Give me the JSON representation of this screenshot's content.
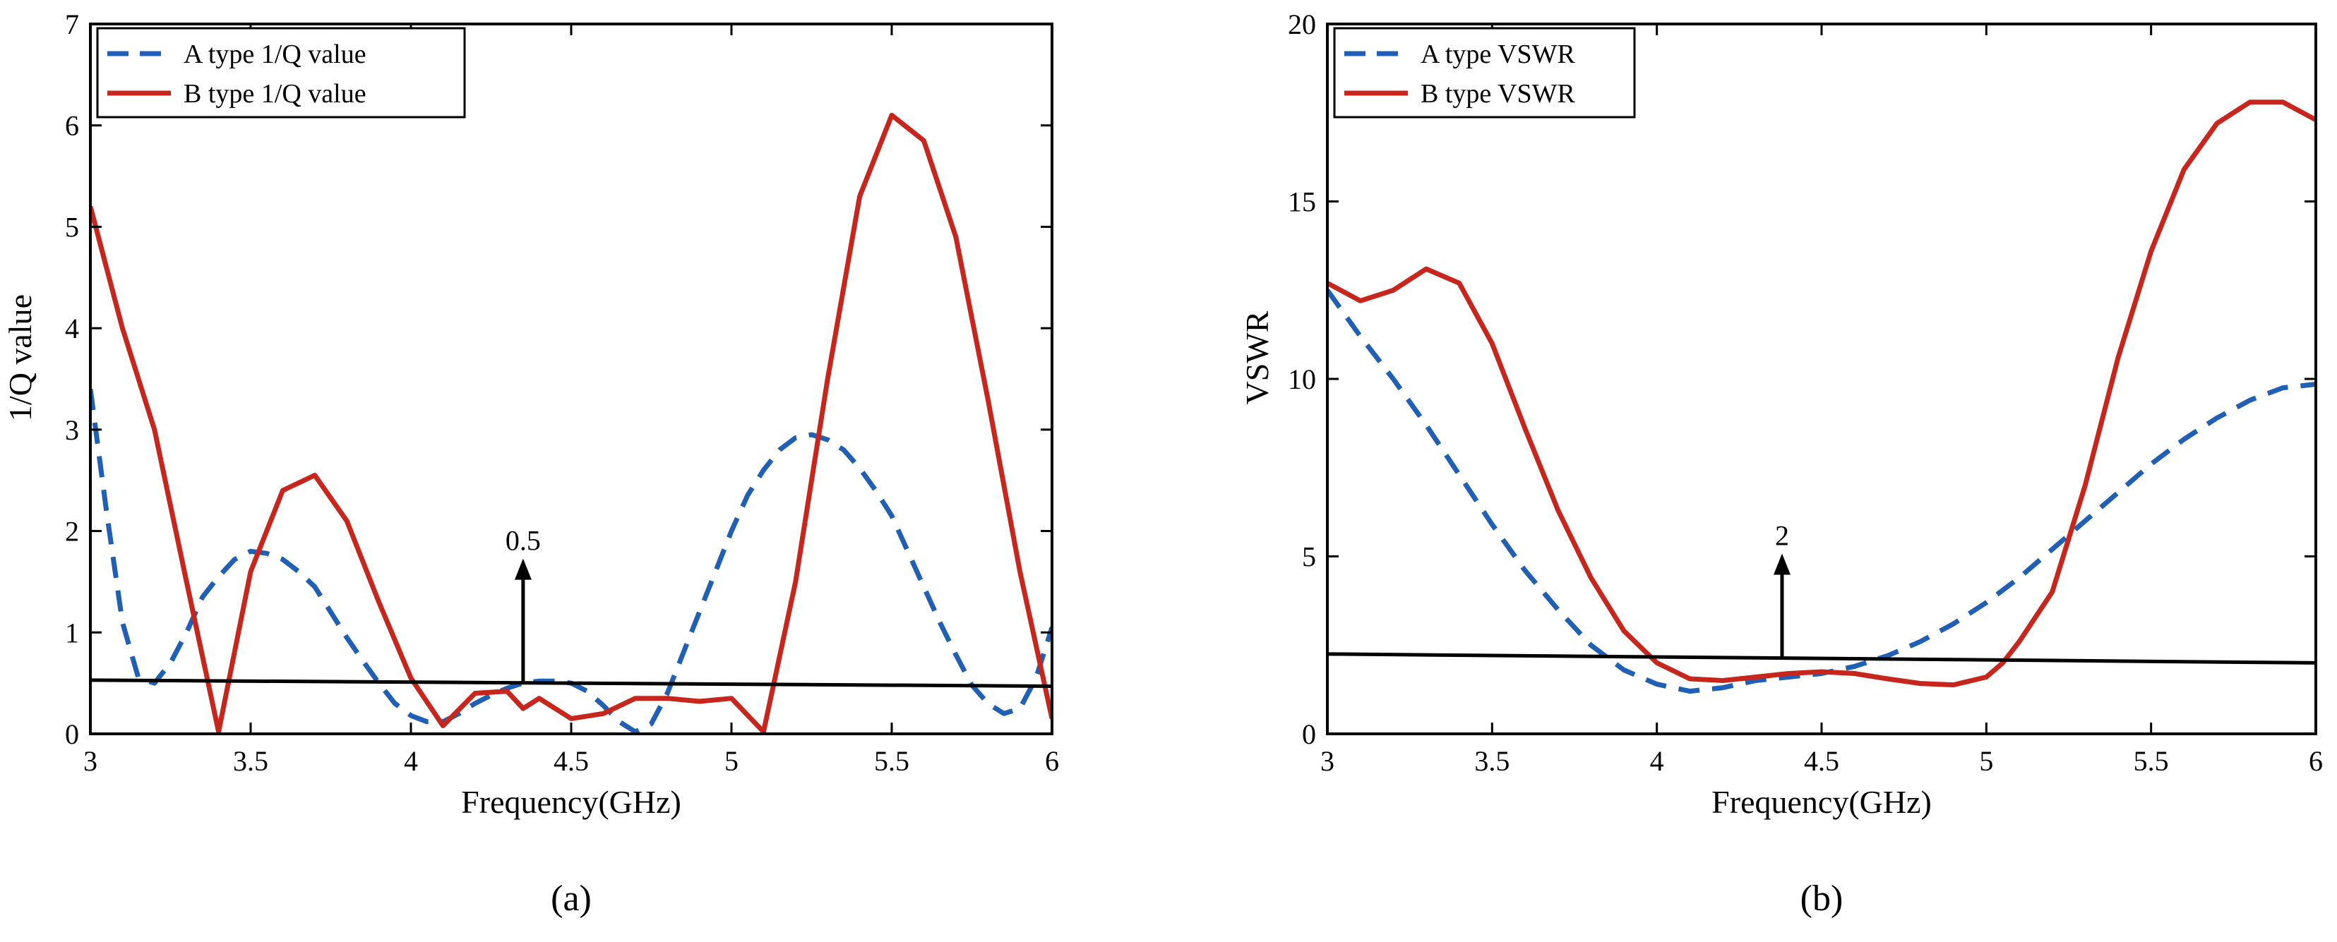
{
  "colors": {
    "series_a": "#1f5fb5",
    "series_b": "#c8261c",
    "threshold": "#000000"
  },
  "chart_data": [
    {
      "type": "line",
      "caption": "(a)",
      "title": "",
      "xlabel": "Frequency(GHz)",
      "ylabel": "1/Q value",
      "xlim": [
        3,
        6
      ],
      "ylim": [
        0,
        7
      ],
      "xticks": [
        3,
        3.5,
        4,
        4.5,
        5,
        5.5,
        6
      ],
      "xtick_labels": [
        "3",
        "3.5",
        "4",
        "4.5",
        "5",
        "5.5",
        "6"
      ],
      "yticks": [
        0,
        1,
        2,
        3,
        4,
        5,
        6,
        7
      ],
      "ytick_labels": [
        "0",
        "1",
        "2",
        "3",
        "4",
        "5",
        "6",
        "7"
      ],
      "legend_position": "top-left",
      "series": [
        {
          "name": "A type 1/Q value",
          "style": "dashed",
          "color_key": "series_a",
          "x": [
            3.0,
            3.05,
            3.1,
            3.15,
            3.2,
            3.25,
            3.3,
            3.35,
            3.4,
            3.45,
            3.5,
            3.55,
            3.6,
            3.65,
            3.7,
            3.75,
            3.8,
            3.85,
            3.9,
            3.95,
            4.0,
            4.05,
            4.1,
            4.15,
            4.2,
            4.25,
            4.3,
            4.35,
            4.4,
            4.45,
            4.5,
            4.55,
            4.6,
            4.65,
            4.7,
            4.75,
            4.8,
            4.85,
            4.9,
            4.95,
            5.0,
            5.05,
            5.1,
            5.15,
            5.2,
            5.25,
            5.3,
            5.35,
            5.4,
            5.45,
            5.5,
            5.55,
            5.6,
            5.65,
            5.7,
            5.75,
            5.8,
            5.85,
            5.9,
            5.95,
            6.0
          ],
          "values": [
            3.4,
            2.2,
            1.1,
            0.55,
            0.5,
            0.7,
            1.0,
            1.35,
            1.55,
            1.72,
            1.8,
            1.78,
            1.72,
            1.6,
            1.45,
            1.2,
            0.95,
            0.72,
            0.5,
            0.3,
            0.18,
            0.12,
            0.12,
            0.2,
            0.3,
            0.38,
            0.45,
            0.5,
            0.52,
            0.52,
            0.5,
            0.42,
            0.28,
            0.12,
            0.02,
            0.1,
            0.4,
            0.8,
            1.2,
            1.6,
            2.0,
            2.35,
            2.6,
            2.8,
            2.92,
            2.95,
            2.9,
            2.8,
            2.62,
            2.4,
            2.15,
            1.8,
            1.45,
            1.1,
            0.78,
            0.48,
            0.3,
            0.2,
            0.25,
            0.55,
            1.05
          ]
        },
        {
          "name": "B type 1/Q value",
          "style": "solid",
          "color_key": "series_b",
          "x": [
            3.0,
            3.1,
            3.2,
            3.3,
            3.4,
            3.5,
            3.6,
            3.7,
            3.8,
            3.9,
            4.0,
            4.1,
            4.2,
            4.3,
            4.35,
            4.4,
            4.5,
            4.6,
            4.7,
            4.8,
            4.9,
            5.0,
            5.1,
            5.2,
            5.3,
            5.4,
            5.5,
            5.6,
            5.7,
            5.8,
            5.9,
            6.0
          ],
          "values": [
            5.2,
            4.0,
            3.0,
            1.5,
            0.02,
            1.6,
            2.4,
            2.55,
            2.1,
            1.3,
            0.55,
            0.08,
            0.4,
            0.42,
            0.25,
            0.35,
            0.15,
            0.2,
            0.35,
            0.35,
            0.32,
            0.35,
            0.02,
            1.5,
            3.5,
            5.3,
            6.1,
            5.85,
            4.9,
            3.3,
            1.6,
            0.15
          ]
        }
      ],
      "threshold_line": {
        "x": [
          3,
          6
        ],
        "y": [
          0.53,
          0.47
        ]
      },
      "annotation": {
        "text": "0.5",
        "x": 4.35,
        "y_from": 0.5,
        "y_to": 1.7
      }
    },
    {
      "type": "line",
      "caption": "(b)",
      "title": "",
      "xlabel": "Frequency(GHz)",
      "ylabel": "VSWR",
      "xlim": [
        3,
        6
      ],
      "ylim": [
        0,
        20
      ],
      "xticks": [
        3,
        3.5,
        4,
        4.5,
        5,
        5.5,
        6
      ],
      "xtick_labels": [
        "3",
        "3.5",
        "4",
        "4.5",
        "5",
        "5.5",
        "6"
      ],
      "yticks": [
        0,
        5,
        10,
        15,
        20
      ],
      "ytick_labels": [
        "0",
        "5",
        "10",
        "15",
        "20"
      ],
      "legend_position": "top-left",
      "series": [
        {
          "name": "A type VSWR",
          "style": "dashed",
          "color_key": "series_a",
          "x": [
            3.0,
            3.1,
            3.2,
            3.3,
            3.4,
            3.5,
            3.6,
            3.7,
            3.8,
            3.9,
            4.0,
            4.1,
            4.2,
            4.3,
            4.4,
            4.5,
            4.6,
            4.7,
            4.8,
            4.9,
            5.0,
            5.1,
            5.2,
            5.3,
            5.4,
            5.5,
            5.6,
            5.7,
            5.8,
            5.9,
            6.0
          ],
          "values": [
            12.5,
            11.2,
            10.0,
            8.7,
            7.3,
            5.9,
            4.6,
            3.5,
            2.5,
            1.8,
            1.4,
            1.2,
            1.3,
            1.5,
            1.6,
            1.7,
            1.9,
            2.2,
            2.6,
            3.1,
            3.7,
            4.4,
            5.2,
            6.0,
            6.8,
            7.6,
            8.3,
            8.9,
            9.4,
            9.75,
            9.85
          ]
        },
        {
          "name": "B type VSWR",
          "style": "solid",
          "color_key": "series_b",
          "x": [
            3.0,
            3.1,
            3.2,
            3.3,
            3.4,
            3.5,
            3.6,
            3.7,
            3.8,
            3.9,
            4.0,
            4.1,
            4.2,
            4.3,
            4.4,
            4.5,
            4.6,
            4.7,
            4.8,
            4.9,
            5.0,
            5.05,
            5.1,
            5.2,
            5.3,
            5.4,
            5.5,
            5.6,
            5.7,
            5.8,
            5.9,
            6.0
          ],
          "values": [
            12.7,
            12.2,
            12.5,
            13.1,
            12.7,
            11.0,
            8.6,
            6.3,
            4.4,
            2.9,
            2.0,
            1.55,
            1.5,
            1.6,
            1.7,
            1.75,
            1.7,
            1.55,
            1.42,
            1.38,
            1.6,
            2.0,
            2.6,
            4.0,
            7.0,
            10.6,
            13.6,
            15.9,
            17.2,
            17.8,
            17.8,
            17.3
          ]
        }
      ],
      "threshold_line": {
        "x": [
          3,
          6
        ],
        "y": [
          2.25,
          2.0
        ]
      },
      "annotation": {
        "text": "2",
        "x": 4.38,
        "y_from": 2.1,
        "y_to": 5.0
      }
    }
  ]
}
